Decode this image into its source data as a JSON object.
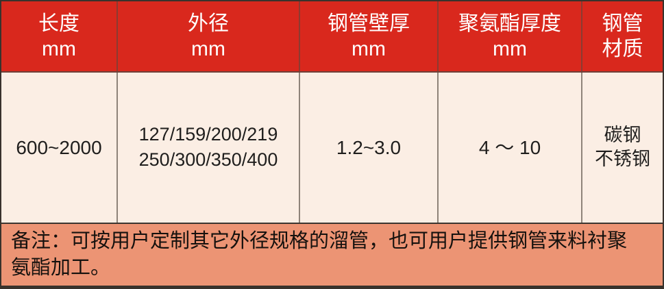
{
  "table": {
    "header": [
      {
        "line1": "长度",
        "line2": "mm"
      },
      {
        "line1": "外径",
        "line2": "mm"
      },
      {
        "line1": "钢管壁厚",
        "line2": "mm"
      },
      {
        "line1": "聚氨酯厚度",
        "line2": "mm"
      },
      {
        "line1": "钢管",
        "line2": "材质"
      }
    ],
    "row": {
      "length": "600~2000",
      "outer_diameter_line1": "127/159/200/219",
      "outer_diameter_line2": "250/300/350/400",
      "wall_thickness": "1.2~3.0",
      "pu_thickness": "4 ～ 10",
      "material_line1": "碳钢",
      "material_line2": "不锈钢"
    },
    "note_line1": "备注：可按用户定制其它外径规格的溜管，也可用户提供钢管来料衬聚",
    "note_line2": "氨酯加工。"
  },
  "colors": {
    "header_bg": "#d9281d",
    "header_text": "#ffffff",
    "body_bg": "#fbeee4",
    "note_bg": "#ec9474",
    "frame": "#39322c"
  }
}
